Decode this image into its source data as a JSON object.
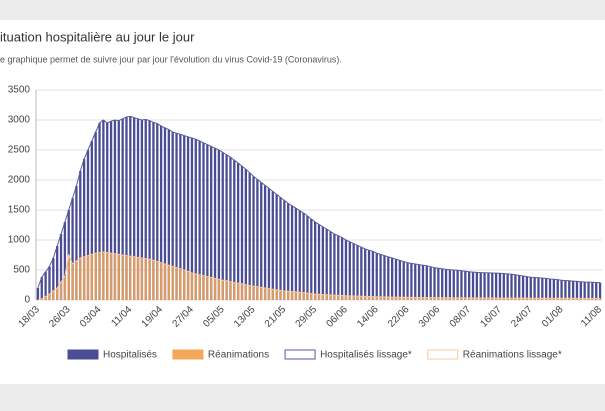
{
  "chart_data": {
    "type": "bar",
    "title": "ituation hospitalière au jour le jour",
    "subtitle": "e graphique permet de suivre jour par jour l'évolution du virus Covid-19 (Coronavirus).",
    "categories": [
      "18/03",
      null,
      null,
      null,
      null,
      null,
      null,
      null,
      "26/03",
      null,
      null,
      null,
      null,
      null,
      null,
      null,
      "03/04",
      null,
      null,
      null,
      null,
      null,
      null,
      null,
      "11/04",
      null,
      null,
      null,
      null,
      null,
      null,
      null,
      "19/04",
      null,
      null,
      null,
      null,
      null,
      null,
      null,
      "27/04",
      null,
      null,
      null,
      null,
      null,
      null,
      null,
      "05/05",
      null,
      null,
      null,
      null,
      null,
      null,
      null,
      "13/05",
      null,
      null,
      null,
      null,
      null,
      null,
      null,
      "21/05",
      null,
      null,
      null,
      null,
      null,
      null,
      null,
      "29/05",
      null,
      null,
      null,
      null,
      null,
      null,
      null,
      "06/06",
      null,
      null,
      null,
      null,
      null,
      null,
      null,
      "14/06",
      null,
      null,
      null,
      null,
      null,
      null,
      null,
      "22/06",
      null,
      null,
      null,
      null,
      null,
      null,
      null,
      "30/06",
      null,
      null,
      null,
      null,
      null,
      null,
      null,
      "08/07",
      null,
      null,
      null,
      null,
      null,
      null,
      null,
      "16/07",
      null,
      null,
      null,
      null,
      null,
      null,
      null,
      "24/07",
      null,
      null,
      null,
      null,
      null,
      null,
      null,
      "01/08",
      null,
      null,
      null,
      null,
      null,
      null,
      null,
      null,
      null,
      "11/08"
    ],
    "series": [
      {
        "name": "Hospitalisés",
        "color": "#4b4d94",
        "style": "bar",
        "values": [
          200,
          380,
          470,
          560,
          700,
          900,
          1100,
          1300,
          1500,
          1700,
          1900,
          2150,
          2350,
          2500,
          2650,
          2800,
          2950,
          3000,
          2950,
          2980,
          3000,
          2990,
          3020,
          3050,
          3060,
          3040,
          3020,
          3000,
          3010,
          2990,
          2960,
          2940,
          2900,
          2870,
          2840,
          2800,
          2780,
          2760,
          2740,
          2720,
          2700,
          2680,
          2650,
          2620,
          2590,
          2560,
          2530,
          2500,
          2460,
          2420,
          2380,
          2330,
          2280,
          2230,
          2180,
          2120,
          2060,
          2010,
          1960,
          1910,
          1860,
          1810,
          1760,
          1710,
          1660,
          1610,
          1570,
          1530,
          1490,
          1450,
          1400,
          1350,
          1300,
          1260,
          1220,
          1180,
          1140,
          1100,
          1070,
          1040,
          1000,
          970,
          940,
          910,
          880,
          850,
          830,
          810,
          780,
          760,
          740,
          720,
          700,
          680,
          660,
          640,
          620,
          610,
          600,
          590,
          580,
          570,
          555,
          540,
          530,
          520,
          510,
          505,
          500,
          495,
          488,
          480,
          470,
          465,
          460,
          457,
          455,
          452,
          450,
          447,
          445,
          440,
          435,
          430,
          420,
          410,
          400,
          390,
          380,
          375,
          370,
          365,
          360,
          350,
          345,
          340,
          330,
          325,
          320,
          315,
          310,
          305,
          300,
          298,
          295,
          292,
          290
        ]
      },
      {
        "name": "Réanimations",
        "color": "#f4a85a",
        "style": "bar",
        "values": [
          0,
          20,
          60,
          100,
          150,
          200,
          300,
          400,
          750,
          600,
          650,
          700,
          720,
          740,
          760,
          780,
          790,
          800,
          790,
          780,
          770,
          760,
          750,
          740,
          730,
          720,
          710,
          700,
          690,
          680,
          660,
          640,
          620,
          600,
          580,
          560,
          540,
          520,
          500,
          475,
          450,
          435,
          420,
          405,
          390,
          375,
          360,
          345,
          330,
          320,
          305,
          290,
          280,
          270,
          255,
          240,
          230,
          220,
          210,
          200,
          190,
          180,
          170,
          160,
          150,
          145,
          140,
          135,
          128,
          120,
          113,
          106,
          100,
          96,
          92,
          88,
          84,
          80,
          77,
          74,
          70,
          68,
          66,
          64,
          62,
          60,
          58,
          56,
          54,
          52,
          50,
          49,
          48,
          47,
          46,
          45,
          44,
          43,
          42,
          41,
          40,
          40,
          39,
          39,
          38,
          38,
          37,
          37,
          36,
          36,
          35,
          35,
          35,
          34,
          34,
          34,
          33,
          33,
          33,
          33,
          32,
          32,
          32,
          32,
          31,
          31,
          31,
          31,
          30,
          30,
          30,
          30,
          30,
          30,
          29,
          29,
          29,
          29,
          29,
          28,
          28,
          28,
          28,
          28,
          27,
          27,
          27
        ]
      },
      {
        "name": "Hospitalisés lissage*",
        "color": "#5a5aa0",
        "style": "line",
        "values": [
          200,
          380,
          470,
          560,
          700,
          900,
          1100,
          1300,
          1500,
          1700,
          1900,
          2150,
          2350,
          2500,
          2650,
          2800,
          2950,
          3000,
          2950,
          2980,
          3000,
          2990,
          3020,
          3050,
          3060,
          3040,
          3020,
          3000,
          3010,
          2990,
          2960,
          2940,
          2900,
          2870,
          2840,
          2800,
          2780,
          2760,
          2740,
          2720,
          2700,
          2680,
          2650,
          2620,
          2590,
          2560,
          2530,
          2500,
          2460,
          2420,
          2380,
          2330,
          2280,
          2230,
          2180,
          2120,
          2060,
          2010,
          1960,
          1910,
          1860,
          1810,
          1760,
          1710,
          1660,
          1610,
          1570,
          1530,
          1490,
          1450,
          1400,
          1350,
          1300,
          1260,
          1220,
          1180,
          1140,
          1100,
          1070,
          1040,
          1000,
          970,
          940,
          910,
          880,
          850,
          830,
          810,
          780,
          760,
          740,
          720,
          700,
          680,
          660,
          640,
          620,
          610,
          600,
          590,
          580,
          570,
          555,
          540,
          530,
          520,
          510,
          505,
          500,
          495,
          488,
          480,
          470,
          465,
          460,
          457,
          455,
          452,
          450,
          447,
          445,
          440,
          435,
          430,
          420,
          410,
          400,
          390,
          380,
          375,
          370,
          365,
          360,
          350,
          345,
          340,
          330,
          325,
          320,
          315,
          310,
          305,
          300,
          298,
          295,
          292,
          290
        ]
      },
      {
        "name": "Réanimations lissage*",
        "color": "#f7c9a0",
        "style": "line",
        "values": [
          0,
          20,
          60,
          100,
          150,
          200,
          300,
          400,
          750,
          600,
          650,
          700,
          720,
          740,
          760,
          780,
          790,
          800,
          790,
          780,
          770,
          760,
          750,
          740,
          730,
          720,
          710,
          700,
          690,
          680,
          660,
          640,
          620,
          600,
          580,
          560,
          540,
          520,
          500,
          475,
          450,
          435,
          420,
          405,
          390,
          375,
          360,
          345,
          330,
          320,
          305,
          290,
          280,
          270,
          255,
          240,
          230,
          220,
          210,
          200,
          190,
          180,
          170,
          160,
          150,
          145,
          140,
          135,
          128,
          120,
          113,
          106,
          100,
          96,
          92,
          88,
          84,
          80,
          77,
          74,
          70,
          68,
          66,
          64,
          62,
          60,
          58,
          56,
          54,
          52,
          50,
          49,
          48,
          47,
          46,
          45,
          44,
          43,
          42,
          41,
          40,
          40,
          39,
          39,
          38,
          38,
          37,
          37,
          36,
          36,
          35,
          35,
          35,
          34,
          34,
          34,
          33,
          33,
          33,
          33,
          32,
          32,
          32,
          32,
          31,
          31,
          31,
          31,
          30,
          30,
          30,
          30,
          30,
          30,
          29,
          29,
          29,
          29,
          29,
          28,
          28,
          28,
          28,
          28,
          27,
          27,
          27
        ]
      }
    ],
    "ylim": [
      0,
      3500
    ],
    "yticks": [
      0,
      500,
      1000,
      1500,
      2000,
      2500,
      3000,
      3500
    ],
    "grid": true
  }
}
